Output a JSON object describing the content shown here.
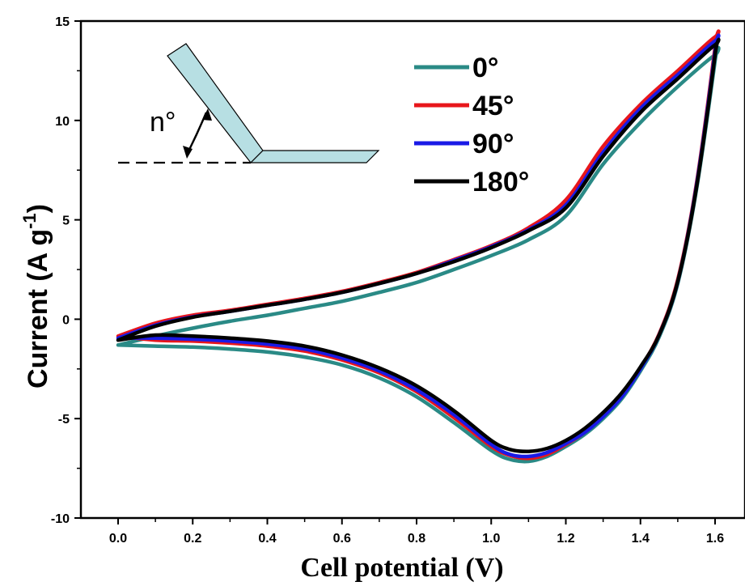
{
  "chart_data": {
    "type": "line",
    "xlabel": "Cell potential (V)",
    "ylabel_main": "Current (A g",
    "ylabel_sup": "-1",
    "ylabel_close": ")",
    "xlim": [
      -0.08,
      1.65
    ],
    "ylim": [
      -10,
      15
    ],
    "x_ticks": [
      0.0,
      0.2,
      0.4,
      0.6,
      0.8,
      1.0,
      1.2,
      1.4,
      1.6
    ],
    "x_tick_labels": [
      "0.0",
      "0.2",
      "0.4",
      "0.6",
      "0.8",
      "1.0",
      "1.2",
      "1.4",
      "1.6"
    ],
    "y_ticks": [
      -10,
      -5,
      0,
      5,
      10,
      15
    ],
    "y_tick_labels": [
      "-10",
      "-5",
      "0",
      "5",
      "10",
      "15"
    ],
    "legend_position": "top-right",
    "inset_label": "n°",
    "series": [
      {
        "name": "0°",
        "color": "#2a8a86",
        "x": [
          0.0,
          0.1,
          0.2,
          0.3,
          0.4,
          0.5,
          0.6,
          0.7,
          0.8,
          0.9,
          1.0,
          1.1,
          1.2,
          1.3,
          1.4,
          1.5,
          1.6,
          1.6,
          1.55,
          1.5,
          1.45,
          1.4,
          1.35,
          1.3,
          1.25,
          1.2,
          1.15,
          1.1,
          1.05,
          1.0,
          0.9,
          0.8,
          0.7,
          0.6,
          0.5,
          0.4,
          0.3,
          0.2,
          0.1,
          0.0
        ],
        "y": [
          -1.3,
          -0.85,
          -0.45,
          -0.1,
          0.2,
          0.55,
          0.9,
          1.35,
          1.85,
          2.5,
          3.2,
          4.0,
          5.2,
          7.8,
          9.9,
          11.7,
          13.3,
          13.0,
          6.5,
          1.8,
          -0.9,
          -2.6,
          -4.0,
          -5.0,
          -5.8,
          -6.4,
          -6.9,
          -7.15,
          -7.05,
          -6.6,
          -5.2,
          -3.9,
          -2.95,
          -2.3,
          -1.9,
          -1.65,
          -1.5,
          -1.4,
          -1.35,
          -1.3
        ]
      },
      {
        "name": "45°",
        "color": "#e8161b",
        "x": [
          0.0,
          0.1,
          0.2,
          0.3,
          0.4,
          0.5,
          0.6,
          0.7,
          0.8,
          0.9,
          1.0,
          1.1,
          1.2,
          1.3,
          1.4,
          1.5,
          1.6,
          1.6,
          1.55,
          1.5,
          1.45,
          1.4,
          1.35,
          1.3,
          1.25,
          1.2,
          1.15,
          1.1,
          1.05,
          1.0,
          0.9,
          0.8,
          0.7,
          0.6,
          0.5,
          0.4,
          0.3,
          0.2,
          0.1,
          0.0
        ],
        "y": [
          -0.85,
          -0.2,
          0.2,
          0.45,
          0.75,
          1.05,
          1.4,
          1.85,
          2.35,
          3.0,
          3.7,
          4.6,
          6.0,
          8.7,
          10.8,
          12.5,
          14.2,
          13.7,
          6.8,
          2.0,
          -0.75,
          -2.45,
          -3.85,
          -4.85,
          -5.7,
          -6.3,
          -6.8,
          -7.0,
          -6.85,
          -6.4,
          -4.95,
          -3.65,
          -2.7,
          -2.05,
          -1.6,
          -1.35,
          -1.2,
          -1.1,
          -1.05,
          -0.85
        ]
      },
      {
        "name": "90°",
        "color": "#1a1ae6",
        "x": [
          0.0,
          0.1,
          0.2,
          0.3,
          0.4,
          0.5,
          0.6,
          0.7,
          0.8,
          0.9,
          1.0,
          1.1,
          1.2,
          1.3,
          1.4,
          1.5,
          1.6,
          1.6,
          1.55,
          1.5,
          1.45,
          1.4,
          1.35,
          1.3,
          1.25,
          1.2,
          1.15,
          1.1,
          1.05,
          1.0,
          0.9,
          0.8,
          0.7,
          0.6,
          0.5,
          0.4,
          0.3,
          0.2,
          0.1,
          0.0
        ],
        "y": [
          -0.95,
          -0.3,
          0.12,
          0.4,
          0.7,
          1.0,
          1.35,
          1.8,
          2.3,
          2.95,
          3.65,
          4.5,
          5.75,
          8.4,
          10.6,
          12.3,
          14.0,
          13.5,
          6.7,
          1.9,
          -0.8,
          -2.5,
          -3.9,
          -4.9,
          -5.7,
          -6.25,
          -6.7,
          -6.9,
          -6.8,
          -6.3,
          -4.8,
          -3.55,
          -2.6,
          -1.95,
          -1.5,
          -1.25,
          -1.1,
          -1.0,
          -0.95,
          -0.95
        ]
      },
      {
        "name": "180°",
        "color": "#000000",
        "x": [
          0.0,
          0.1,
          0.2,
          0.3,
          0.4,
          0.5,
          0.6,
          0.7,
          0.8,
          0.9,
          1.0,
          1.1,
          1.2,
          1.3,
          1.4,
          1.5,
          1.6,
          1.6,
          1.55,
          1.5,
          1.45,
          1.4,
          1.35,
          1.3,
          1.25,
          1.2,
          1.15,
          1.1,
          1.05,
          1.0,
          0.9,
          0.8,
          0.7,
          0.6,
          0.5,
          0.4,
          0.3,
          0.2,
          0.1,
          0.0
        ],
        "y": [
          -1.05,
          -0.35,
          0.1,
          0.4,
          0.7,
          1.0,
          1.35,
          1.8,
          2.3,
          2.9,
          3.6,
          4.45,
          5.6,
          8.2,
          10.4,
          12.1,
          13.8,
          13.3,
          6.6,
          1.9,
          -0.8,
          -2.4,
          -3.7,
          -4.7,
          -5.5,
          -6.1,
          -6.5,
          -6.65,
          -6.55,
          -6.1,
          -4.6,
          -3.35,
          -2.45,
          -1.8,
          -1.35,
          -1.1,
          -0.95,
          -0.85,
          -0.8,
          -1.05
        ]
      }
    ]
  }
}
